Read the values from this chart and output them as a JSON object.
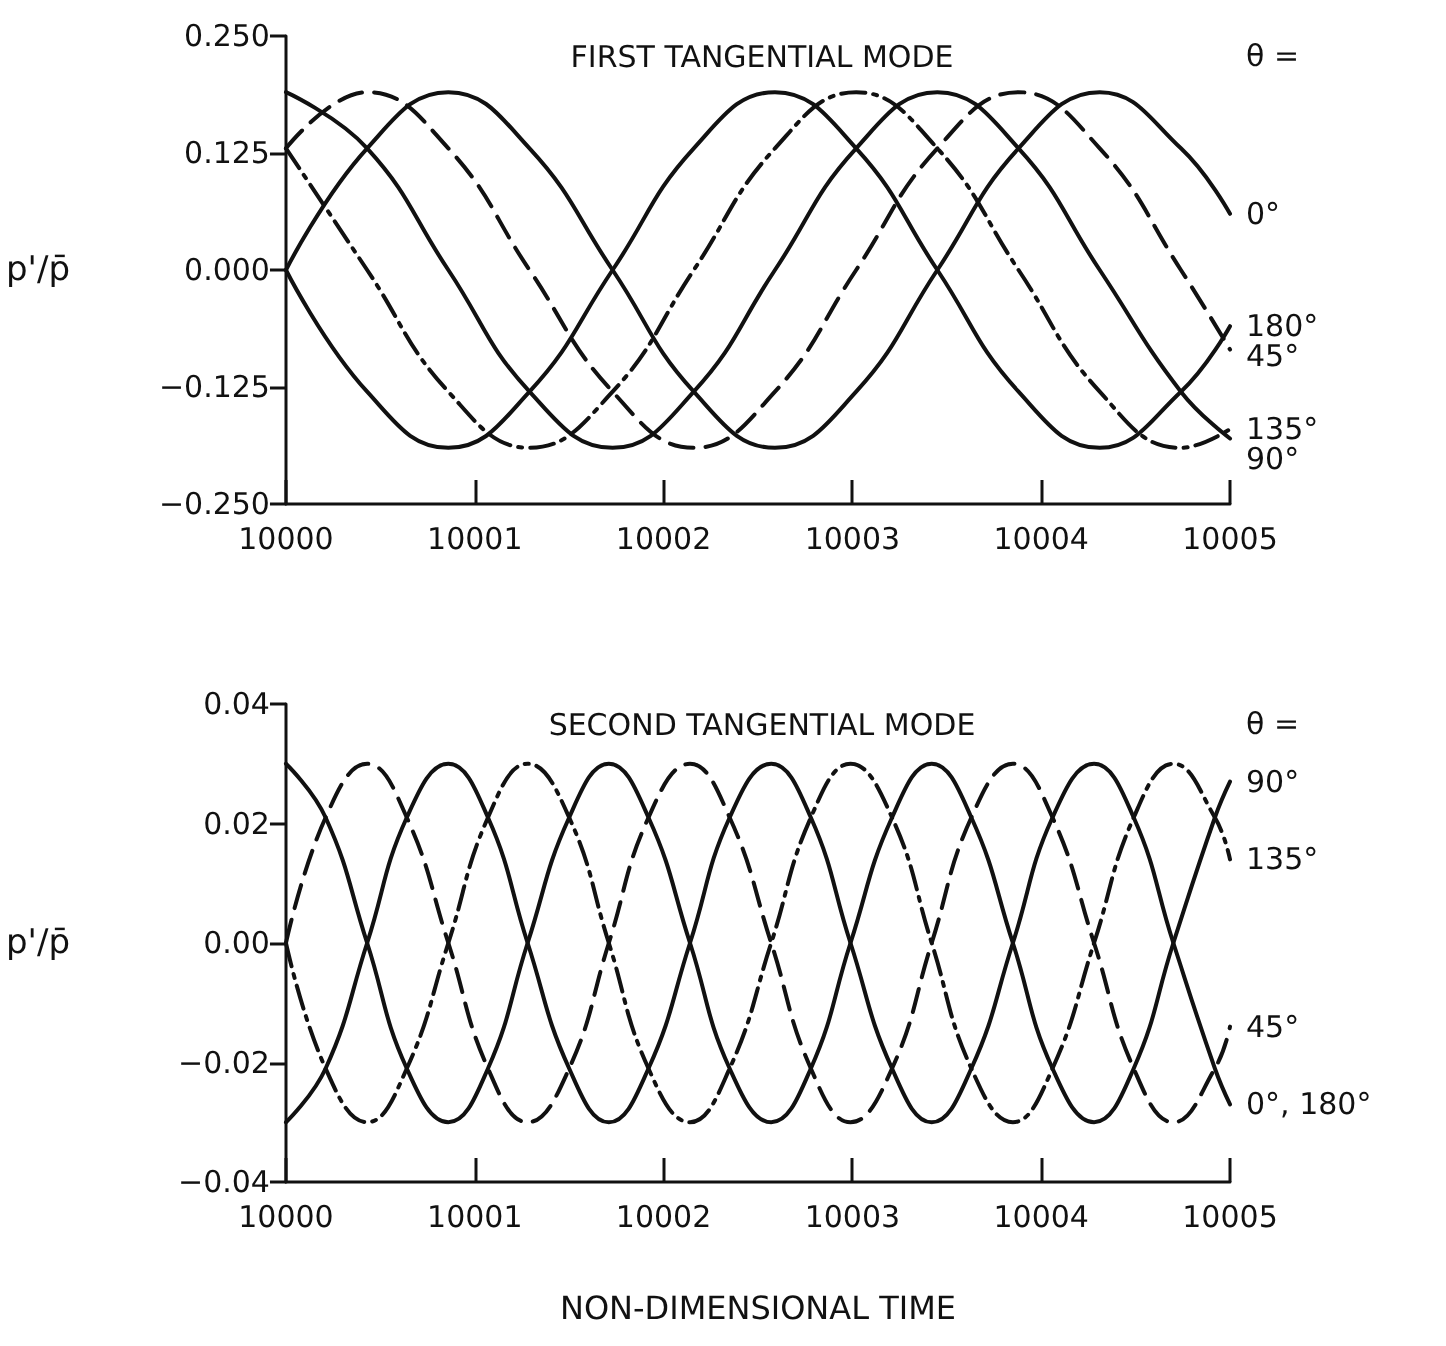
{
  "chart_data": [
    {
      "type": "line",
      "title": "FIRST TANGENTIAL MODE",
      "ylabel": "p'/p̄",
      "x": [
        10000,
        10000.43,
        10000.86,
        10001.29,
        10001.73,
        10002.16,
        10002.59,
        10003.02,
        10003.45,
        10003.88,
        10004.31,
        10004.74,
        10005
      ],
      "series": [
        {
          "name": "0°",
          "color": "#111111",
          "line_style": "solid",
          "values": [
            0,
            0.13,
            0.19,
            0.13,
            0,
            -0.13,
            -0.19,
            -0.13,
            0,
            0.13,
            0.19,
            0.13,
            0.06
          ]
        },
        {
          "name": "45°",
          "color": "#111111",
          "line_style": "dashed",
          "values": [
            0.13,
            0.19,
            0.13,
            0,
            -0.13,
            -0.19,
            -0.13,
            0,
            0.13,
            0.19,
            0.13,
            0,
            -0.085
          ]
        },
        {
          "name": "90°",
          "color": "#111111",
          "line_style": "solid",
          "values": [
            0.19,
            0.13,
            0,
            -0.13,
            -0.19,
            -0.13,
            0,
            0.13,
            0.19,
            0.13,
            0,
            -0.13,
            -0.18
          ]
        },
        {
          "name": "135°",
          "color": "#111111",
          "line_style": "dotted",
          "values": [
            0.13,
            0,
            -0.13,
            -0.19,
            -0.13,
            0,
            0.13,
            0.19,
            0.13,
            0,
            -0.13,
            -0.19,
            -0.17
          ]
        },
        {
          "name": "180°",
          "color": "#111111",
          "line_style": "solid",
          "values": [
            0,
            -0.13,
            -0.19,
            -0.13,
            0,
            0.13,
            0.19,
            0.13,
            0,
            -0.13,
            -0.19,
            -0.13,
            -0.06
          ]
        }
      ],
      "xlim": [
        10000,
        10005
      ],
      "xticks": [
        10000,
        10001,
        10002,
        10003,
        10004,
        10005
      ],
      "ylim": [
        -0.25,
        0.25
      ],
      "yticks": [
        {
          "value": -0.25,
          "label": "−0.250"
        },
        {
          "value": -0.125,
          "label": "−0.125"
        },
        {
          "value": 0,
          "label": "0.000"
        },
        {
          "value": 0.125,
          "label": "0.125"
        },
        {
          "value": 0.25,
          "label": "0.250"
        }
      ],
      "grid": false,
      "marker": "none",
      "annotations": [
        "θ ="
      ]
    },
    {
      "type": "line",
      "title": "SECOND TANGENTIAL MODE",
      "ylabel": "p'/p̄",
      "xlabel": "NON-DIMENSIONAL TIME",
      "x": [
        10000,
        10000.21,
        10000.43,
        10000.64,
        10000.86,
        10001.07,
        10001.28,
        10001.5,
        10001.71,
        10001.92,
        10002.14,
        10002.35,
        10002.57,
        10002.78,
        10002.99,
        10003.21,
        10003.42,
        10003.63,
        10003.85,
        10004.06,
        10004.28,
        10004.49,
        10004.7,
        10004.92,
        10005
      ],
      "series": [
        {
          "name": "45°",
          "color": "#111111",
          "line_style": "dashed",
          "values": [
            0,
            0.021,
            0.03,
            0.021,
            0,
            -0.021,
            -0.03,
            -0.021,
            0,
            0.021,
            0.03,
            0.021,
            0,
            -0.021,
            -0.03,
            -0.021,
            0,
            0.021,
            0.03,
            0.021,
            0,
            -0.021,
            -0.03,
            -0.021,
            -0.014
          ]
        },
        {
          "name": "90°",
          "color": "#111111",
          "line_style": "solid",
          "values": [
            0.03,
            0.021,
            0,
            -0.021,
            -0.03,
            -0.021,
            0,
            0.021,
            0.03,
            0.021,
            0,
            -0.021,
            -0.03,
            -0.021,
            0,
            0.021,
            0.03,
            0.021,
            0,
            -0.021,
            -0.03,
            -0.021,
            0,
            0.021,
            0.027
          ]
        },
        {
          "name": "135°",
          "color": "#111111",
          "line_style": "dotted",
          "values": [
            0,
            -0.021,
            -0.03,
            -0.021,
            0,
            0.021,
            0.03,
            0.021,
            0,
            -0.021,
            -0.03,
            -0.021,
            0,
            0.021,
            0.03,
            0.021,
            0,
            -0.021,
            -0.03,
            -0.021,
            0,
            0.021,
            0.03,
            0.021,
            0.014
          ]
        },
        {
          "name": "0°, 180°",
          "color": "#111111",
          "line_style": "solid",
          "values": [
            -0.03,
            -0.021,
            0,
            0.021,
            0.03,
            0.021,
            0,
            -0.021,
            -0.03,
            -0.021,
            0,
            0.021,
            0.03,
            0.021,
            0,
            -0.021,
            -0.03,
            -0.021,
            0,
            0.021,
            0.03,
            0.021,
            0,
            -0.021,
            -0.027
          ]
        }
      ],
      "xlim": [
        10000,
        10005
      ],
      "xticks": [
        10000,
        10001,
        10002,
        10003,
        10004,
        10005
      ],
      "ylim": [
        -0.04,
        0.04
      ],
      "yticks": [
        {
          "value": -0.04,
          "label": "−0.04"
        },
        {
          "value": -0.02,
          "label": "−0.02"
        },
        {
          "value": 0,
          "label": "0.00"
        },
        {
          "value": 0.02,
          "label": "0.02"
        },
        {
          "value": 0.04,
          "label": "0.04"
        }
      ],
      "grid": false,
      "marker": "none",
      "annotations": [
        "θ ="
      ]
    }
  ]
}
